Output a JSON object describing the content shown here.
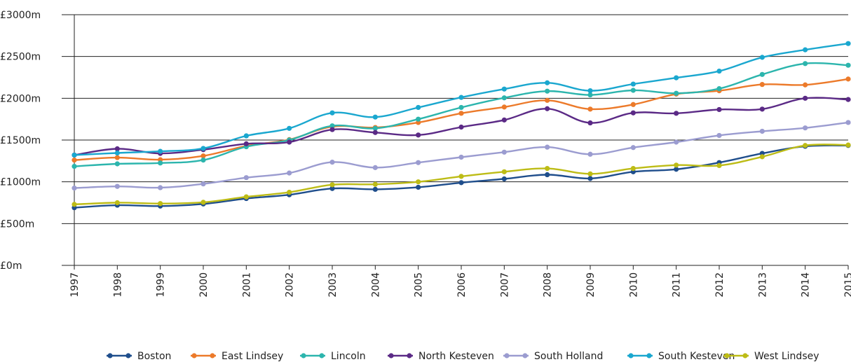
{
  "chart_data": {
    "type": "line",
    "title": "",
    "xlabel": "",
    "ylabel": "",
    "ylim": [
      0,
      3000
    ],
    "y_ticks": [
      0,
      500,
      1000,
      1500,
      2000,
      2500,
      3000
    ],
    "y_tick_labels": [
      "£0m",
      "£500m",
      "£1000m",
      "£1500m",
      "£2000m",
      "£2500m",
      "£3000m"
    ],
    "grid": "horizontal",
    "legend_position": "bottom",
    "categories": [
      "1997",
      "1998",
      "1999",
      "2000",
      "2001",
      "2002",
      "2003",
      "2004",
      "2005",
      "2006",
      "2007",
      "2008",
      "2009",
      "2010",
      "2011",
      "2012",
      "2013",
      "2014",
      "2015"
    ],
    "series": [
      {
        "name": "Boston",
        "color": "#1f4e8c",
        "values": [
          690,
          720,
          710,
          735,
          800,
          845,
          920,
          910,
          935,
          990,
          1035,
          1085,
          1040,
          1120,
          1150,
          1230,
          1340,
          1425,
          1435
        ]
      },
      {
        "name": "East Lindsey",
        "color": "#ec7a2a",
        "values": [
          1260,
          1290,
          1265,
          1310,
          1430,
          1505,
          1660,
          1650,
          1710,
          1820,
          1895,
          1975,
          1870,
          1925,
          2050,
          2090,
          2165,
          2160,
          2230
        ]
      },
      {
        "name": "Lincoln",
        "color": "#2cb5ad",
        "values": [
          1185,
          1215,
          1225,
          1260,
          1420,
          1500,
          1670,
          1640,
          1750,
          1890,
          2005,
          2085,
          2040,
          2095,
          2060,
          2115,
          2285,
          2415,
          2395
        ]
      },
      {
        "name": "North Kesteven",
        "color": "#5b2a86",
        "values": [
          1320,
          1395,
          1340,
          1385,
          1455,
          1475,
          1625,
          1590,
          1560,
          1655,
          1740,
          1875,
          1705,
          1825,
          1820,
          1865,
          1870,
          2000,
          1985
        ]
      },
      {
        "name": "South Holland",
        "color": "#9b9cd0",
        "values": [
          925,
          945,
          930,
          975,
          1050,
          1105,
          1235,
          1170,
          1230,
          1295,
          1355,
          1415,
          1330,
          1410,
          1475,
          1555,
          1605,
          1645,
          1710
        ]
      },
      {
        "name": "South Kesteven",
        "color": "#1aa7cf",
        "values": [
          1320,
          1345,
          1365,
          1400,
          1550,
          1640,
          1825,
          1775,
          1890,
          2010,
          2110,
          2185,
          2090,
          2170,
          2245,
          2325,
          2490,
          2580,
          2655
        ]
      },
      {
        "name": "West Lindsey",
        "color": "#bdbc16",
        "values": [
          730,
          750,
          740,
          755,
          820,
          875,
          965,
          970,
          1000,
          1065,
          1120,
          1160,
          1095,
          1160,
          1200,
          1195,
          1300,
          1435,
          1440
        ]
      }
    ]
  }
}
